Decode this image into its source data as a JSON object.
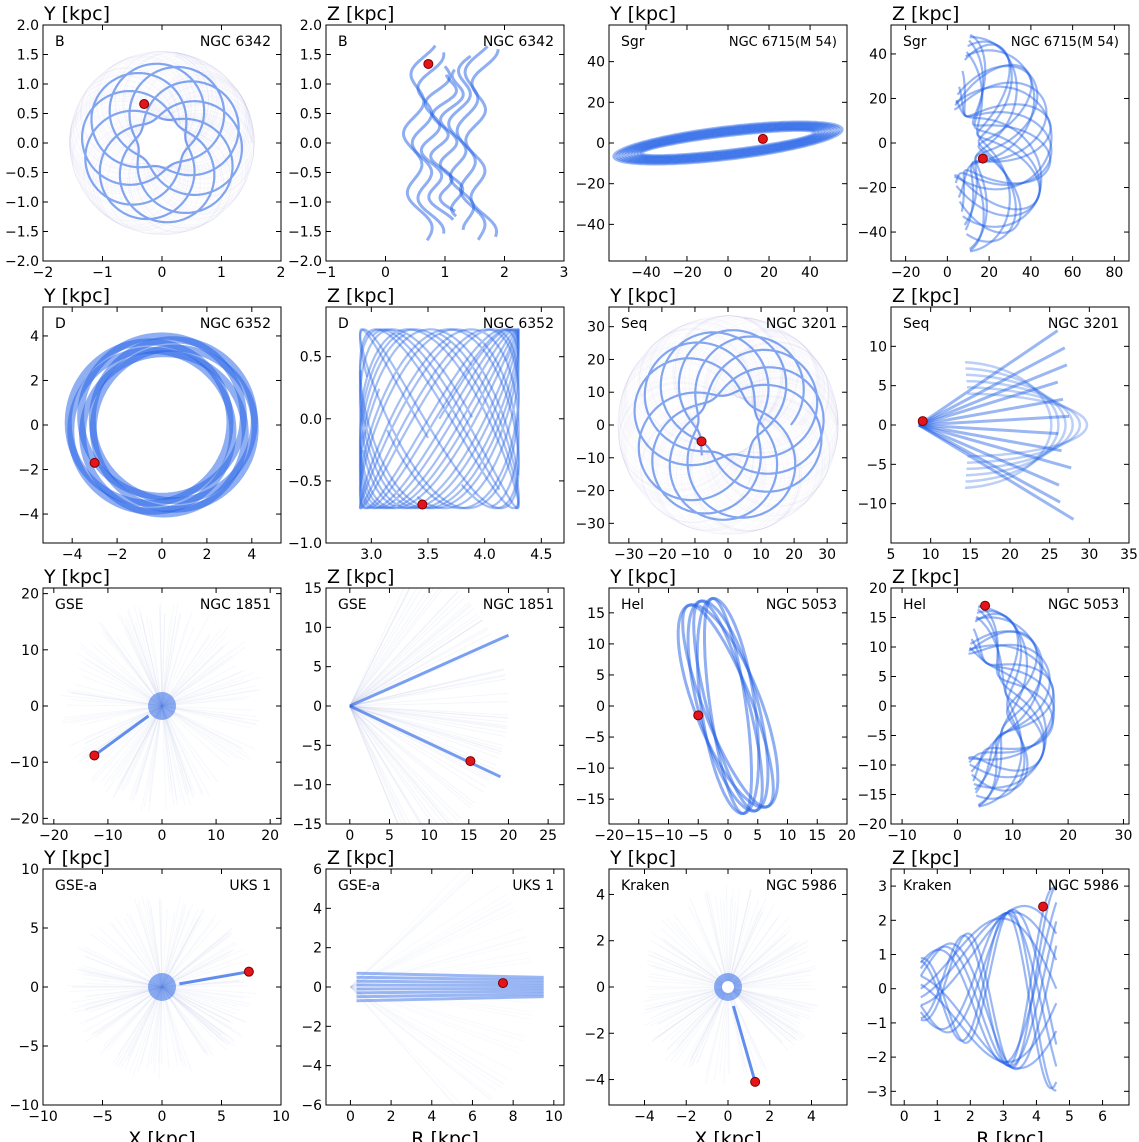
{
  "figure": {
    "xlabels": [
      "X [kpc]",
      "R [kpc]",
      "X [kpc]",
      "R [kpc]"
    ]
  },
  "colors": {
    "orbit": "#1f5fe6",
    "envelope": "#9aa6d6",
    "marker": "#e4151a",
    "marker_edge": "#7a0000"
  },
  "chart_data": [
    {
      "type": "scatter",
      "group": "B",
      "cluster": "NGC 6342",
      "ylabel": "Y [kpc]",
      "xlabel": "",
      "xlim": [
        -2,
        2
      ],
      "ylim": [
        -2,
        2
      ],
      "xticks": [
        -2,
        -1,
        0,
        1,
        2
      ],
      "yticks": [
        -2.0,
        -1.5,
        -1.0,
        -0.5,
        0.0,
        0.5,
        1.0,
        1.5,
        2.0
      ],
      "xticklabels": [
        "−2",
        "−1",
        "0",
        "1",
        "2"
      ],
      "yticklabels": [
        "−2.0",
        "−1.5",
        "−1.0",
        "−0.5",
        "0.0",
        "0.5",
        "1.0",
        "1.5",
        "2.0"
      ],
      "orbit": {
        "kind": "rosette",
        "rmin": 0.4,
        "rmax": 1.35,
        "petals": 7
      },
      "current_position": {
        "x": -0.3,
        "y": 0.66
      }
    },
    {
      "type": "scatter",
      "group": "B",
      "cluster": "NGC 6342",
      "ylabel": "Z [kpc]",
      "xlabel": "",
      "xlim": [
        -1,
        3
      ],
      "ylim": [
        -2,
        2
      ],
      "xticks": [
        -1,
        0,
        1,
        2,
        3
      ],
      "yticks": [
        -2.0,
        -1.5,
        -1.0,
        -0.5,
        0.0,
        0.5,
        1.0,
        1.5,
        2.0
      ],
      "xticklabels": [
        "−1",
        "0",
        "1",
        "2",
        "3"
      ],
      "yticklabels": [
        "−2.0",
        "−1.5",
        "−1.0",
        "−0.5",
        "0.0",
        "0.5",
        "1.0",
        "1.5",
        "2.0"
      ],
      "orbit": {
        "kind": "meridional",
        "rmin": 0.45,
        "rmax": 1.5,
        "zmax": 1.65,
        "bend": 0.5
      },
      "current_position": {
        "x": 0.72,
        "y": 1.34
      }
    },
    {
      "type": "scatter",
      "group": "Sgr",
      "cluster": "NGC 6715(M 54)",
      "ylabel": "Y [kpc]",
      "xlabel": "",
      "xlim": [
        -58,
        58
      ],
      "ylim": [
        -58,
        58
      ],
      "xticks": [
        -40,
        -20,
        0,
        20,
        40
      ],
      "yticks": [
        -40,
        -20,
        0,
        20,
        40
      ],
      "xticklabels": [
        "−40",
        "−20",
        "0",
        "20",
        "40"
      ],
      "yticklabels": [
        "−40",
        "−20",
        "0",
        "20",
        "40"
      ],
      "orbit": {
        "kind": "thin-ellipse",
        "a": 50,
        "b": 6,
        "tilt": 0.12
      },
      "current_position": {
        "x": 17,
        "y": 2
      }
    },
    {
      "type": "scatter",
      "group": "Sgr",
      "cluster": "NGC 6715(M 54)",
      "ylabel": "Z [kpc]",
      "xlabel": "",
      "xlim": [
        -27,
        87
      ],
      "ylim": [
        -53,
        53
      ],
      "xticks": [
        -20,
        0,
        20,
        40,
        60,
        80
      ],
      "yticks": [
        -40,
        -20,
        0,
        20,
        40
      ],
      "xticklabels": [
        "−20",
        "0",
        "20",
        "40",
        "60",
        "80"
      ],
      "yticklabels": [
        "−40",
        "−20",
        "0",
        "20",
        "40"
      ],
      "orbit": {
        "kind": "crescent",
        "rmin": 15,
        "rmax": 50
      },
      "current_position": {
        "x": 17,
        "y": -7
      }
    },
    {
      "type": "scatter",
      "group": "D",
      "cluster": "NGC 6352",
      "ylabel": "Y [kpc]",
      "xlabel": "",
      "xlim": [
        -5.3,
        5.3
      ],
      "ylim": [
        -5.3,
        5.3
      ],
      "xticks": [
        -4,
        -2,
        0,
        2,
        4
      ],
      "yticks": [
        -4,
        -2,
        0,
        2,
        4
      ],
      "xticklabels": [
        "−4",
        "−2",
        "0",
        "2",
        "4"
      ],
      "yticklabels": [
        "−4",
        "−2",
        "0",
        "2",
        "4"
      ],
      "orbit": {
        "kind": "disk-rings",
        "rmin": 3.2,
        "rmax": 4.0
      },
      "current_position": {
        "x": -3.0,
        "y": -1.7
      }
    },
    {
      "type": "scatter",
      "group": "D",
      "cluster": "NGC 6352",
      "ylabel": "Z [kpc]",
      "xlabel": "",
      "xlim": [
        2.6,
        4.7
      ],
      "ylim": [
        -1.0,
        0.9
      ],
      "xticks": [
        3.0,
        3.5,
        4.0,
        4.5
      ],
      "yticks": [
        -1.0,
        -0.5,
        0.0,
        0.5
      ],
      "xticklabels": [
        "3.0",
        "3.5",
        "4.0",
        "4.5"
      ],
      "yticklabels": [
        "−1.0",
        "−0.5",
        "0.0",
        "0.5"
      ],
      "orbit": {
        "kind": "box",
        "rmin": 2.9,
        "rmax": 4.3,
        "zmax": 0.72
      },
      "current_position": {
        "x": 3.45,
        "y": -0.69
      }
    },
    {
      "type": "scatter",
      "group": "Seq",
      "cluster": "NGC 3201",
      "ylabel": "Y [kpc]",
      "xlabel": "",
      "xlim": [
        -36,
        36
      ],
      "ylim": [
        -36,
        36
      ],
      "xticks": [
        -30,
        -20,
        -10,
        0,
        10,
        20,
        30
      ],
      "yticks": [
        -30,
        -20,
        -10,
        0,
        10,
        20,
        30
      ],
      "xticklabels": [
        "−30",
        "−20",
        "−10",
        "0",
        "10",
        "20",
        "30"
      ],
      "yticklabels": [
        "−30",
        "−20",
        "−10",
        "0",
        "10",
        "20",
        "30"
      ],
      "orbit": {
        "kind": "rosette",
        "rmin": 9,
        "rmax": 29,
        "petals": 9
      },
      "current_position": {
        "x": -8,
        "y": -5
      }
    },
    {
      "type": "scatter",
      "group": "Seq",
      "cluster": "NGC 3201",
      "ylabel": "Z [kpc]",
      "xlabel": "",
      "xlim": [
        5,
        35
      ],
      "ylim": [
        -15,
        15
      ],
      "xticks": [
        5,
        10,
        15,
        20,
        25,
        30,
        35
      ],
      "yticks": [
        -10,
        -5,
        0,
        5,
        10
      ],
      "xticklabels": [
        "5",
        "10",
        "15",
        "20",
        "25",
        "30",
        "35"
      ],
      "yticklabels": [
        "−10",
        "−5",
        "0",
        "5",
        "10"
      ],
      "orbit": {
        "kind": "fan",
        "rmin": 8.5,
        "rmax": 28,
        "zmax": 12
      },
      "current_position": {
        "x": 9,
        "y": 0.5
      }
    },
    {
      "type": "scatter",
      "group": "GSE",
      "cluster": "NGC 1851",
      "ylabel": "Y [kpc]",
      "xlabel": "",
      "xlim": [
        -22,
        22
      ],
      "ylim": [
        -21,
        21
      ],
      "xticks": [
        -20,
        -10,
        0,
        10,
        20
      ],
      "yticks": [
        -20,
        -10,
        0,
        10,
        20
      ],
      "xticklabels": [
        "−20",
        "−10",
        "0",
        "10",
        "20"
      ],
      "yticklabels": [
        "−20",
        "−10",
        "0",
        "10",
        "20"
      ],
      "orbit": {
        "kind": "radial",
        "rmax": 19
      },
      "current_position": {
        "x": -12.5,
        "y": -8.8
      }
    },
    {
      "type": "scatter",
      "group": "GSE",
      "cluster": "NGC 1851",
      "ylabel": "Z [kpc]",
      "xlabel": "",
      "xlim": [
        -3,
        27
      ],
      "ylim": [
        -15,
        15
      ],
      "xticks": [
        0,
        5,
        10,
        15,
        20,
        25
      ],
      "yticks": [
        -15,
        -10,
        -5,
        0,
        5,
        10,
        15
      ],
      "xticklabels": [
        "0",
        "5",
        "10",
        "15",
        "20",
        "25"
      ],
      "yticklabels": [
        "−15",
        "−10",
        "−5",
        "0",
        "5",
        "10",
        "15"
      ],
      "orbit": {
        "kind": "radial-fan",
        "rmax": 20
      },
      "current_position": {
        "x": 15.2,
        "y": -7
      }
    },
    {
      "type": "scatter",
      "group": "Hel",
      "cluster": "NGC 5053",
      "ylabel": "Y [kpc]",
      "xlabel": "",
      "xlim": [
        -20,
        20
      ],
      "ylim": [
        -19,
        19
      ],
      "xticks": [
        -20,
        -15,
        -10,
        -5,
        0,
        5,
        10,
        15,
        20
      ],
      "yticks": [
        -15,
        -10,
        -5,
        0,
        5,
        10,
        15
      ],
      "xticklabels": [
        "−20",
        "−15",
        "−10",
        "−5",
        "0",
        "5",
        "10",
        "15",
        "20"
      ],
      "yticklabels": [
        "−15",
        "−10",
        "−5",
        "0",
        "5",
        "10",
        "15"
      ],
      "orbit": {
        "kind": "tilted-ellipses",
        "a": 17.5,
        "b": 5
      },
      "current_position": {
        "x": -5,
        "y": -1.5
      }
    },
    {
      "type": "scatter",
      "group": "Hel",
      "cluster": "NGC 5053",
      "ylabel": "Z [kpc]",
      "xlabel": "",
      "xlim": [
        -12,
        31
      ],
      "ylim": [
        -20,
        20
      ],
      "xticks": [
        -10,
        0,
        10,
        20,
        30
      ],
      "yticks": [
        -20,
        -15,
        -10,
        -5,
        0,
        5,
        10,
        15,
        20
      ],
      "xticklabels": [
        "−10",
        "0",
        "10",
        "20",
        "30"
      ],
      "yticklabels": [
        "−20",
        "−15",
        "−10",
        "−5",
        "0",
        "5",
        "10",
        "15",
        "20"
      ],
      "orbit": {
        "kind": "crescent",
        "rmin": 9,
        "rmax": 17.5
      },
      "current_position": {
        "x": 5,
        "y": 17
      }
    },
    {
      "type": "scatter",
      "group": "GSE-a",
      "cluster": "UKS 1",
      "ylabel": "Y [kpc]",
      "xlabel": "X [kpc]",
      "xlim": [
        -10,
        10
      ],
      "ylim": [
        -10,
        10
      ],
      "xticks": [
        -10,
        -5,
        0,
        5,
        10
      ],
      "yticks": [
        -10,
        -5,
        0,
        5,
        10
      ],
      "xticklabels": [
        "−10",
        "−5",
        "0",
        "5",
        "10"
      ],
      "yticklabels": [
        "−10",
        "−5",
        "0",
        "5",
        "10"
      ],
      "orbit": {
        "kind": "radial",
        "rmax": 8
      },
      "current_position": {
        "x": 7.3,
        "y": 1.3
      }
    },
    {
      "type": "scatter",
      "group": "GSE-a",
      "cluster": "UKS 1",
      "ylabel": "Z [kpc]",
      "xlabel": "R [kpc]",
      "xlim": [
        -1.2,
        10.5
      ],
      "ylim": [
        -6,
        6
      ],
      "xticks": [
        0,
        2,
        4,
        6,
        8,
        10
      ],
      "yticks": [
        -6,
        -4,
        -2,
        0,
        2,
        4,
        6
      ],
      "xticklabels": [
        "0",
        "2",
        "4",
        "6",
        "8",
        "10"
      ],
      "yticklabels": [
        "−6",
        "−4",
        "−2",
        "0",
        "2",
        "4",
        "6"
      ],
      "orbit": {
        "kind": "flat-band",
        "rmin": 0.3,
        "rmax": 9.5,
        "zmax": 0.7
      },
      "current_position": {
        "x": 7.5,
        "y": 0.2
      }
    },
    {
      "type": "scatter",
      "group": "Kraken",
      "cluster": "NGC 5986",
      "ylabel": "Y [kpc]",
      "xlabel": "X [kpc]",
      "xlim": [
        -5.7,
        5.7
      ],
      "ylim": [
        -5.1,
        5.1
      ],
      "xticks": [
        -4,
        -2,
        0,
        2,
        4
      ],
      "yticks": [
        -4,
        -2,
        0,
        2,
        4
      ],
      "xticklabels": [
        "−4",
        "−2",
        "0",
        "2",
        "4"
      ],
      "yticklabels": [
        "−4",
        "−2",
        "0",
        "2",
        "4"
      ],
      "orbit": {
        "kind": "radial-ring",
        "rmax": 4.4,
        "rmin": 0.25
      },
      "current_position": {
        "x": 1.3,
        "y": -4.1
      }
    },
    {
      "type": "scatter",
      "group": "Kraken",
      "cluster": "NGC 5986",
      "ylabel": "Z [kpc]",
      "xlabel": "R [kpc]",
      "xlim": [
        -0.4,
        6.8
      ],
      "ylim": [
        -3.4,
        3.5
      ],
      "xticks": [
        0,
        1,
        2,
        3,
        4,
        5,
        6
      ],
      "yticks": [
        -3,
        -2,
        -1,
        0,
        1,
        2,
        3
      ],
      "xticklabels": [
        "0",
        "1",
        "2",
        "3",
        "4",
        "5",
        "6"
      ],
      "yticklabels": [
        "−3",
        "−2",
        "−1",
        "0",
        "1",
        "2",
        "3"
      ],
      "orbit": {
        "kind": "wedge",
        "rmin": 0.5,
        "rmax": 4.6,
        "zmax": 3
      },
      "current_position": {
        "x": 4.2,
        "y": 2.4
      }
    }
  ]
}
